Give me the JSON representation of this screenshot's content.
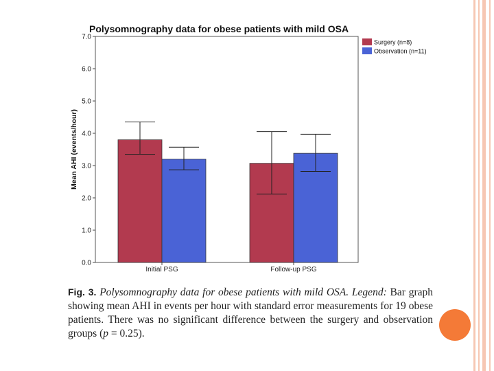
{
  "chart_data": {
    "type": "bar",
    "title": "Polysomnography data for obese patients with mild OSA",
    "xlabel": "",
    "ylabel": "Mean AHI (events/hour)",
    "ylim": [
      0,
      7
    ],
    "yticks": [
      "0.0",
      "1.0",
      "2.0",
      "3.0",
      "4.0",
      "5.0",
      "6.0",
      "7.0"
    ],
    "categories": [
      "Initial PSG",
      "Follow-up PSG"
    ],
    "series": [
      {
        "name": "Surgery (n=8)",
        "color": "#b23a4f",
        "values": [
          3.8,
          3.07
        ],
        "error_low": [
          3.35,
          2.12
        ],
        "error_high": [
          4.35,
          4.05
        ]
      },
      {
        "name": "Observation (n=11)",
        "color": "#4a63d6",
        "values": [
          3.2,
          3.38
        ],
        "error_low": [
          2.87,
          2.82
        ],
        "error_high": [
          3.57,
          3.97
        ]
      }
    ],
    "legend": "top-right",
    "grid": false
  },
  "caption": {
    "fig_label": "Fig. 3.",
    "italic_title": "Polysomnography data for obese patients with mild OSA. Legend:",
    "text_a": "Bar graph showing mean AHI in events per hour with standard error measurements for 19 obese patients. There was no significant difference between the surgery and observation groups (",
    "p_symbol": "p",
    "text_b": " = 0.25)."
  },
  "colors": {
    "accent_circle": "#f47a37",
    "border_stripe": "#f6c7b3"
  }
}
